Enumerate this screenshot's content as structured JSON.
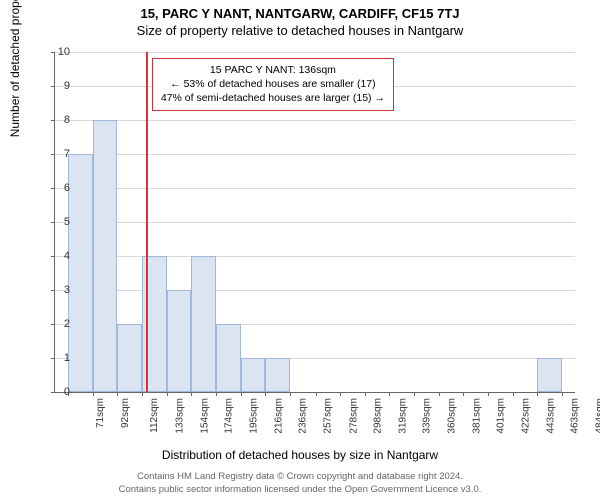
{
  "title_main": "15, PARC Y NANT, NANTGARW, CARDIFF, CF15 7TJ",
  "title_sub": "Size of property relative to detached houses in Nantgarw",
  "ylabel": "Number of detached properties",
  "xlabel": "Distribution of detached houses by size in Nantgarw",
  "footer_line1": "Contains HM Land Registry data © Crown copyright and database right 2024.",
  "footer_line2": "Contains public sector information licensed under the Open Government Licence v3.0.",
  "annotation": {
    "line1": "15 PARC Y NANT: 136sqm",
    "line2": "← 53% of detached houses are smaller (17)",
    "line3": "47% of semi-detached houses are larger (15) →"
  },
  "chart": {
    "type": "histogram",
    "ylim": [
      0,
      10
    ],
    "ytick_step": 1,
    "bar_color": "#dbe5f1",
    "bar_border_color": "#9fb8d9",
    "grid_color": "#d9d9d9",
    "background_color": "#ffffff",
    "refline_x": 136,
    "refline_color": "#d93333",
    "xticks": [
      "71sqm",
      "92sqm",
      "112sqm",
      "133sqm",
      "154sqm",
      "174sqm",
      "195sqm",
      "216sqm",
      "236sqm",
      "257sqm",
      "278sqm",
      "298sqm",
      "319sqm",
      "339sqm",
      "360sqm",
      "381sqm",
      "401sqm",
      "422sqm",
      "443sqm",
      "463sqm",
      "484sqm"
    ],
    "xtick_values": [
      71,
      92,
      112,
      133,
      154,
      174,
      195,
      216,
      236,
      257,
      278,
      298,
      319,
      339,
      360,
      381,
      401,
      422,
      443,
      463,
      484
    ],
    "x_range": [
      60,
      495
    ],
    "bars": [
      {
        "x_start": 71,
        "x_end": 92,
        "count": 7
      },
      {
        "x_start": 92,
        "x_end": 112,
        "count": 8
      },
      {
        "x_start": 112,
        "x_end": 133,
        "count": 2
      },
      {
        "x_start": 133,
        "x_end": 154,
        "count": 4
      },
      {
        "x_start": 154,
        "x_end": 174,
        "count": 3
      },
      {
        "x_start": 174,
        "x_end": 195,
        "count": 4
      },
      {
        "x_start": 195,
        "x_end": 216,
        "count": 2
      },
      {
        "x_start": 216,
        "x_end": 236,
        "count": 1
      },
      {
        "x_start": 236,
        "x_end": 257,
        "count": 1
      },
      {
        "x_start": 463,
        "x_end": 484,
        "count": 1
      }
    ],
    "title_fontsize": 13,
    "label_fontsize": 12,
    "tick_fontsize": 10
  }
}
